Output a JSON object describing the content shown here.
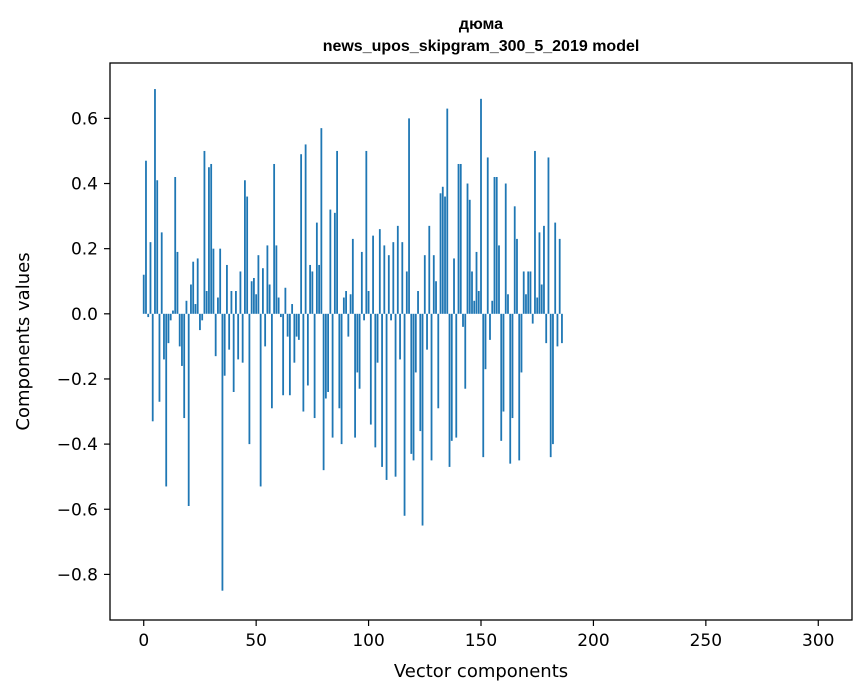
{
  "chart_data": {
    "type": "bar",
    "title": "дюма",
    "subtitle": "news_upos_skipgram_300_5_2019 model",
    "xlabel": "Vector components",
    "ylabel": "Components values",
    "xlim": [
      -15,
      315
    ],
    "ylim": [
      -0.94,
      0.77
    ],
    "xticks": [
      0,
      50,
      100,
      150,
      200,
      250,
      300
    ],
    "yticks": [
      -0.8,
      -0.6,
      -0.4,
      -0.2,
      0.0,
      0.2,
      0.4,
      0.6
    ],
    "ytick_labels": [
      "−0.8",
      "−0.6",
      "−0.4",
      "−0.2",
      "0.0",
      "0.2",
      "0.4",
      "0.6"
    ],
    "bar_color": "#1f77b4",
    "grid": false,
    "values": [
      0.12,
      0.47,
      -0.01,
      0.22,
      -0.33,
      0.69,
      0.41,
      -0.27,
      0.25,
      -0.14,
      -0.53,
      -0.09,
      -0.02,
      0.01,
      0.42,
      0.19,
      -0.1,
      -0.16,
      -0.32,
      0.04,
      -0.59,
      0.09,
      0.16,
      0.03,
      0.17,
      -0.05,
      -0.02,
      0.5,
      0.07,
      0.45,
      0.46,
      0.2,
      -0.13,
      0.05,
      0.2,
      -0.85,
      -0.19,
      0.15,
      -0.11,
      0.07,
      -0.24,
      0.07,
      -0.14,
      0.13,
      -0.15,
      0.41,
      0.36,
      -0.4,
      0.1,
      0.11,
      0.06,
      0.18,
      -0.53,
      0.14,
      -0.1,
      0.21,
      0.09,
      -0.29,
      0.46,
      0.21,
      0.05,
      -0.01,
      -0.25,
      0.08,
      -0.07,
      -0.25,
      0.03,
      -0.15,
      -0.07,
      -0.08,
      0.49,
      -0.3,
      0.52,
      -0.22,
      0.15,
      0.13,
      -0.32,
      0.28,
      0.15,
      0.57,
      -0.48,
      -0.26,
      -0.24,
      0.32,
      -0.38,
      0.31,
      0.5,
      -0.29,
      -0.4,
      0.05,
      0.07,
      -0.07,
      0.06,
      0.23,
      -0.38,
      -0.18,
      -0.23,
      0.19,
      -0.02,
      0.5,
      0.07,
      -0.34,
      0.24,
      -0.41,
      -0.15,
      0.26,
      -0.47,
      0.21,
      -0.51,
      0.18,
      -0.02,
      0.22,
      -0.5,
      0.27,
      -0.14,
      0.22,
      -0.62,
      0.13,
      0.6,
      -0.43,
      -0.45,
      -0.18,
      0.07,
      -0.36,
      -0.65,
      0.18,
      -0.11,
      0.27,
      -0.45,
      0.18,
      0.1,
      -0.29,
      0.37,
      0.39,
      0.36,
      0.63,
      -0.47,
      -0.39,
      0.17,
      -0.38,
      0.46,
      0.46,
      -0.04,
      -0.23,
      0.4,
      0.35,
      0.13,
      0.04,
      0.19,
      0.07,
      0.66,
      -0.44,
      -0.17,
      0.48,
      -0.08,
      0.04,
      0.42,
      0.42,
      0.21,
      -0.39,
      -0.3,
      0.4,
      0.06,
      -0.46,
      -0.32,
      0.33,
      0.23,
      -0.45,
      -0.18,
      0.13,
      0.06,
      0.13,
      0.13,
      -0.03,
      0.5,
      0.05,
      0.25,
      0.09,
      0.27,
      -0.09,
      0.48,
      -0.44,
      -0.4,
      0.28,
      -0.1,
      0.23,
      -0.09
    ]
  }
}
